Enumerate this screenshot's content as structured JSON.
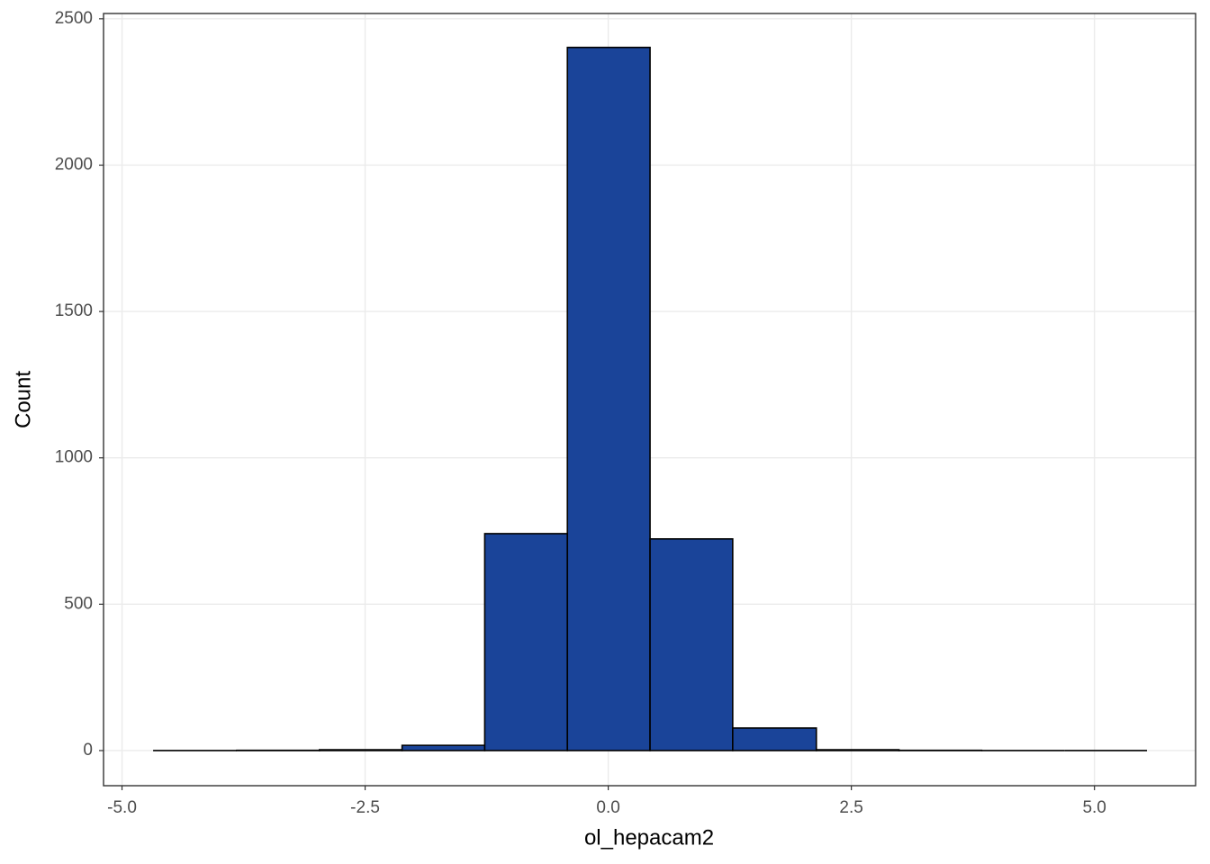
{
  "chart_data": {
    "type": "histogram",
    "x_label": "ol_hepacam2",
    "y_label": "Count",
    "bins": [
      -4.68,
      -3.82,
      -2.97,
      -2.12,
      -1.27,
      -0.42,
      0.43,
      1.28,
      2.14,
      2.99,
      3.84,
      4.69,
      5.54
    ],
    "values": [
      0,
      1,
      3,
      18,
      741,
      2402,
      723,
      77,
      3,
      1,
      0,
      0
    ],
    "color": "#1a4499",
    "edge_color": "#000000",
    "xlim": [
      -5.19,
      6.04
    ],
    "ylim": [
      -120,
      2518
    ],
    "xticks": [
      {
        "value": -5,
        "label": "-5.0"
      },
      {
        "value": -2.5,
        "label": "-2.5"
      },
      {
        "value": 0,
        "label": "0.0"
      },
      {
        "value": 2.5,
        "label": "2.5"
      },
      {
        "value": 5,
        "label": "5.0"
      }
    ],
    "yticks": [
      0,
      500,
      1000,
      1500,
      2000,
      2500
    ],
    "grid": true
  }
}
